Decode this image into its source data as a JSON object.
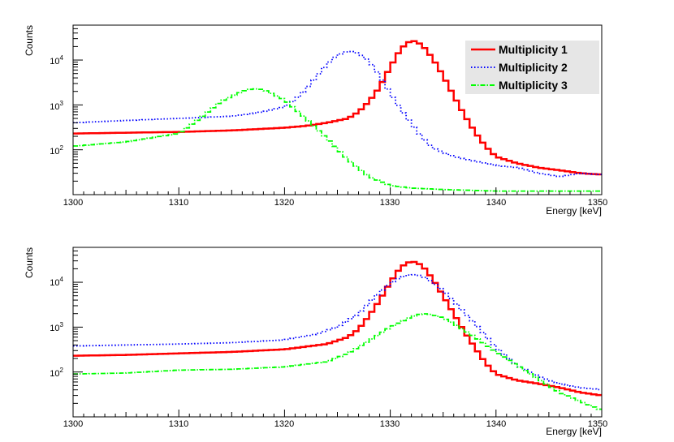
{
  "colors": {
    "multiplicity_1": "#ff0000",
    "multiplicity_2": "#0000ff",
    "multiplicity_3": "#00ff00"
  },
  "chart_data": [
    {
      "type": "line",
      "title": "",
      "xlabel": "Energy [keV]",
      "ylabel": "Counts",
      "xlim": [
        1300,
        1350
      ],
      "ylim": [
        10,
        60000
      ],
      "yscale": "log",
      "x_ticks": [
        "1300",
        "1310",
        "1320",
        "1330",
        "1340",
        "1350"
      ],
      "y_ticks": [
        {
          "base": "10",
          "exp": "2"
        },
        {
          "base": "10",
          "exp": "3"
        },
        {
          "base": "10",
          "exp": "4"
        }
      ],
      "legend": {
        "placement": "top-right",
        "entries": [
          "Multiplicity 1",
          "Multiplicity 2",
          "Multiplicity 3"
        ]
      },
      "series": [
        {
          "name": "Multiplicity 1",
          "style": "solid-step",
          "x": [
            1300,
            1305,
            1310,
            1315,
            1320,
            1322,
            1324,
            1326,
            1327,
            1328,
            1329,
            1330,
            1331,
            1332,
            1333,
            1334,
            1335,
            1336,
            1337,
            1338,
            1339,
            1340,
            1342,
            1344,
            1346,
            1348,
            1350
          ],
          "y": [
            230,
            240,
            250,
            270,
            310,
            340,
            400,
            500,
            700,
            1200,
            2500,
            7000,
            18000,
            28000,
            22000,
            11000,
            4500,
            1600,
            600,
            250,
            120,
            70,
            50,
            40,
            35,
            30,
            28
          ]
        },
        {
          "name": "Multiplicity 2",
          "style": "dotted-step",
          "x": [
            1300,
            1305,
            1310,
            1315,
            1318,
            1320,
            1321,
            1322,
            1323,
            1324,
            1325,
            1326,
            1327,
            1328,
            1329,
            1330,
            1331,
            1332,
            1333,
            1334,
            1336,
            1338,
            1340,
            1342,
            1344,
            1346,
            1348,
            1350
          ],
          "y": [
            400,
            450,
            500,
            560,
            700,
            900,
            1300,
            2200,
            4200,
            8000,
            13000,
            16000,
            14000,
            9500,
            4500,
            1800,
            800,
            380,
            190,
            110,
            70,
            55,
            45,
            40,
            30,
            25,
            30,
            28
          ]
        },
        {
          "name": "Multiplicity 3",
          "style": "dashdot-step",
          "x": [
            1300,
            1305,
            1310,
            1312,
            1314,
            1316,
            1317,
            1318,
            1320,
            1322,
            1324,
            1326,
            1328,
            1330,
            1332,
            1335,
            1340,
            1345,
            1350
          ],
          "y": [
            120,
            150,
            230,
            500,
            1200,
            2000,
            2300,
            2200,
            1300,
            500,
            180,
            60,
            25,
            16,
            14,
            13,
            12,
            12,
            12
          ]
        }
      ]
    },
    {
      "type": "line",
      "title": "",
      "xlabel": "Energy [keV]",
      "ylabel": "Counts",
      "xlim": [
        1300,
        1350
      ],
      "ylim": [
        10,
        60000
      ],
      "yscale": "log",
      "x_ticks": [
        "1300",
        "1310",
        "1320",
        "1330",
        "1340",
        "1350"
      ],
      "y_ticks": [
        {
          "base": "10",
          "exp": "2"
        },
        {
          "base": "10",
          "exp": "3"
        },
        {
          "base": "10",
          "exp": "4"
        }
      ],
      "series": [
        {
          "name": "Multiplicity 1",
          "style": "solid-step",
          "x": [
            1300,
            1305,
            1310,
            1315,
            1320,
            1324,
            1326,
            1327,
            1328,
            1329,
            1330,
            1331,
            1332,
            1333,
            1334,
            1335,
            1336,
            1337,
            1338,
            1339,
            1340,
            1342,
            1344,
            1346,
            1348,
            1350
          ],
          "y": [
            230,
            240,
            260,
            280,
            320,
            420,
            600,
            900,
            1800,
            4000,
            10000,
            22000,
            30000,
            24000,
            12000,
            5000,
            2000,
            800,
            350,
            160,
            90,
            65,
            55,
            45,
            35,
            30
          ]
        },
        {
          "name": "Multiplicity 2",
          "style": "dotted-step",
          "x": [
            1300,
            1305,
            1310,
            1315,
            1320,
            1323,
            1325,
            1327,
            1328,
            1329,
            1330,
            1331,
            1332,
            1333,
            1334,
            1335,
            1336,
            1337,
            1338,
            1339,
            1340,
            1342,
            1344,
            1346,
            1348,
            1350
          ],
          "y": [
            380,
            400,
            420,
            450,
            520,
            700,
            1000,
            2000,
            3500,
            6000,
            9500,
            13000,
            15000,
            14000,
            10000,
            6500,
            3800,
            2100,
            1200,
            650,
            350,
            140,
            80,
            55,
            45,
            40
          ]
        },
        {
          "name": "Multiplicity 3",
          "style": "dashdot-step",
          "x": [
            1300,
            1305,
            1310,
            1315,
            1320,
            1324,
            1326,
            1328,
            1330,
            1332,
            1333,
            1334,
            1335,
            1336,
            1338,
            1340,
            1342,
            1344,
            1346,
            1348,
            1350
          ],
          "y": [
            90,
            95,
            110,
            115,
            130,
            170,
            260,
            500,
            1000,
            1700,
            2000,
            1900,
            1600,
            1200,
            600,
            280,
            140,
            70,
            35,
            22,
            14
          ]
        }
      ]
    }
  ]
}
